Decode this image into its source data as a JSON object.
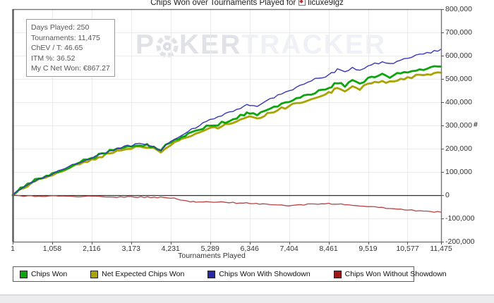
{
  "title": {
    "prefix": "Chips Won over Tournaments Played for",
    "player": "licuxe9lgz"
  },
  "watermark": {
    "part1": "P",
    "part2": "KER",
    "part3": "TRACKER"
  },
  "stats_box": {
    "lines": [
      "Days Played: 250",
      "Tournaments: 11,475",
      "ChEV / T: 46.65",
      "ITM %: 36.52",
      "My C Net Won: €867.27"
    ]
  },
  "chart_data": {
    "type": "line",
    "title": "Chips Won over Tournaments Played for licuxe9lgz",
    "xlabel": "Tournaments Played",
    "ylabel": "#",
    "grid": true,
    "legend_position": "bottom",
    "xlim": [
      1,
      11475
    ],
    "ylim": [
      -200000,
      800000
    ],
    "x_tick_labels": [
      "1",
      "1,058",
      "2,116",
      "3,173",
      "4,231",
      "5,289",
      "6,346",
      "7,404",
      "8,461",
      "9,519",
      "10,577",
      "11,475"
    ],
    "x_tick_values": [
      1,
      1058,
      2116,
      3173,
      4231,
      5289,
      6346,
      7404,
      8461,
      9519,
      10577,
      11475
    ],
    "y_tick_labels": [
      "800,000",
      "700,000",
      "600,000",
      "500,000",
      "400,000",
      "300,000",
      "200,000",
      "100,000",
      "0",
      "-100,000",
      "-200,000"
    ],
    "y_tick_values": [
      800000,
      700000,
      600000,
      500000,
      400000,
      300000,
      200000,
      100000,
      0,
      -100000,
      -200000
    ],
    "zero_line": 0,
    "series": [
      {
        "name": "Net Expected Chips Won",
        "color": "#a8a403",
        "width": 2.8,
        "jitter": 2.0,
        "points": [
          [
            1,
            0
          ],
          [
            120,
            15000
          ],
          [
            300,
            33000
          ],
          [
            500,
            52000
          ],
          [
            700,
            63000
          ],
          [
            900,
            75000
          ],
          [
            1058,
            85000
          ],
          [
            1300,
            100000
          ],
          [
            1600,
            120000
          ],
          [
            1900,
            140000
          ],
          [
            2116,
            151000
          ],
          [
            2400,
            168000
          ],
          [
            2700,
            186000
          ],
          [
            2900,
            195000
          ],
          [
            3173,
            201000
          ],
          [
            3400,
            207000
          ],
          [
            3600,
            205000
          ],
          [
            3780,
            198000
          ],
          [
            3970,
            183000
          ],
          [
            4100,
            206000
          ],
          [
            4231,
            219000
          ],
          [
            4450,
            234000
          ],
          [
            4700,
            248000
          ],
          [
            5000,
            272000
          ],
          [
            5289,
            287000
          ],
          [
            5500,
            293000
          ],
          [
            5800,
            310000
          ],
          [
            6000,
            319000
          ],
          [
            6200,
            334000
          ],
          [
            6346,
            340000
          ],
          [
            6550,
            330000
          ],
          [
            6750,
            346000
          ],
          [
            6900,
            357000
          ],
          [
            7100,
            367000
          ],
          [
            7404,
            383000
          ],
          [
            7600,
            394000
          ],
          [
            7800,
            406000
          ],
          [
            8000,
            418000
          ],
          [
            8200,
            428000
          ],
          [
            8461,
            440000
          ],
          [
            8700,
            460000
          ],
          [
            8900,
            450000
          ],
          [
            9100,
            470000
          ],
          [
            9300,
            458000
          ],
          [
            9519,
            476000
          ],
          [
            9700,
            487000
          ],
          [
            9900,
            492000
          ],
          [
            10100,
            484000
          ],
          [
            10300,
            495000
          ],
          [
            10577,
            505000
          ],
          [
            10800,
            512000
          ],
          [
            11000,
            517000
          ],
          [
            11200,
            521000
          ],
          [
            11475,
            527000
          ]
        ]
      },
      {
        "name": "Chips Won",
        "color": "#0da50d",
        "width": 2.8,
        "jitter": 2.0,
        "points": [
          [
            1,
            0
          ],
          [
            120,
            18000
          ],
          [
            300,
            38000
          ],
          [
            500,
            58000
          ],
          [
            700,
            70000
          ],
          [
            900,
            82000
          ],
          [
            1058,
            92000
          ],
          [
            1300,
            108000
          ],
          [
            1600,
            128000
          ],
          [
            1900,
            148000
          ],
          [
            2116,
            160000
          ],
          [
            2400,
            178000
          ],
          [
            2700,
            196000
          ],
          [
            2900,
            205000
          ],
          [
            3173,
            212000
          ],
          [
            3400,
            218000
          ],
          [
            3600,
            215000
          ],
          [
            3780,
            206000
          ],
          [
            3970,
            188000
          ],
          [
            4100,
            215000
          ],
          [
            4231,
            230000
          ],
          [
            4450,
            245000
          ],
          [
            4700,
            260000
          ],
          [
            5000,
            285000
          ],
          [
            5289,
            300000
          ],
          [
            5500,
            305000
          ],
          [
            5800,
            322000
          ],
          [
            6000,
            332000
          ],
          [
            6200,
            348000
          ],
          [
            6346,
            355000
          ],
          [
            6550,
            342000
          ],
          [
            6750,
            360000
          ],
          [
            6900,
            372000
          ],
          [
            7100,
            382000
          ],
          [
            7404,
            400000
          ],
          [
            7600,
            412000
          ],
          [
            7800,
            425000
          ],
          [
            8000,
            437000
          ],
          [
            8200,
            448000
          ],
          [
            8461,
            462000
          ],
          [
            8700,
            485000
          ],
          [
            8900,
            470000
          ],
          [
            9100,
            495000
          ],
          [
            9300,
            480000
          ],
          [
            9519,
            500000
          ],
          [
            9700,
            512000
          ],
          [
            9900,
            518000
          ],
          [
            10100,
            508000
          ],
          [
            10300,
            520000
          ],
          [
            10577,
            530000
          ],
          [
            10800,
            538000
          ],
          [
            11000,
            543000
          ],
          [
            11200,
            548000
          ],
          [
            11475,
            553000
          ]
        ]
      },
      {
        "name": "Chips Won With Showdown",
        "color": "#3838b8",
        "width": 1.4,
        "jitter": 1.6,
        "points": [
          [
            1,
            0
          ],
          [
            120,
            18000
          ],
          [
            300,
            38000
          ],
          [
            500,
            58000
          ],
          [
            700,
            70000
          ],
          [
            900,
            82000
          ],
          [
            1058,
            92000
          ],
          [
            1300,
            108000
          ],
          [
            1600,
            128000
          ],
          [
            1900,
            148000
          ],
          [
            2116,
            160000
          ],
          [
            2400,
            178000
          ],
          [
            2700,
            196000
          ],
          [
            2900,
            205000
          ],
          [
            3173,
            213000
          ],
          [
            3400,
            220000
          ],
          [
            3600,
            217000
          ],
          [
            3780,
            208000
          ],
          [
            3970,
            191000
          ],
          [
            4100,
            218000
          ],
          [
            4231,
            234000
          ],
          [
            4450,
            252000
          ],
          [
            4700,
            272000
          ],
          [
            5000,
            302000
          ],
          [
            5289,
            325000
          ],
          [
            5500,
            335000
          ],
          [
            5800,
            355000
          ],
          [
            6000,
            368000
          ],
          [
            6200,
            382000
          ],
          [
            6346,
            390000
          ],
          [
            6550,
            384000
          ],
          [
            6750,
            402000
          ],
          [
            6900,
            415000
          ],
          [
            7100,
            428000
          ],
          [
            7404,
            450000
          ],
          [
            7600,
            462000
          ],
          [
            7800,
            478000
          ],
          [
            8000,
            492000
          ],
          [
            8200,
            505000
          ],
          [
            8461,
            515000
          ],
          [
            8700,
            540000
          ],
          [
            8900,
            528000
          ],
          [
            9100,
            548000
          ],
          [
            9300,
            538000
          ],
          [
            9519,
            552000
          ],
          [
            9700,
            565000
          ],
          [
            9900,
            572000
          ],
          [
            10100,
            562000
          ],
          [
            10300,
            578000
          ],
          [
            10577,
            592000
          ],
          [
            10800,
            600000
          ],
          [
            11000,
            607000
          ],
          [
            11200,
            615000
          ],
          [
            11475,
            628000
          ]
        ]
      },
      {
        "name": "Chips Won Without Showdown",
        "color": "#b84444",
        "width": 1.3,
        "jitter": 0.8,
        "points": [
          [
            1,
            0
          ],
          [
            300,
            -3000
          ],
          [
            700,
            -5000
          ],
          [
            1058,
            -4000
          ],
          [
            1500,
            -6000
          ],
          [
            2116,
            -5000
          ],
          [
            2600,
            -8000
          ],
          [
            3173,
            -7000
          ],
          [
            3700,
            -9000
          ],
          [
            4231,
            -11000
          ],
          [
            4500,
            -20000
          ],
          [
            4760,
            -28000
          ],
          [
            5000,
            -30000
          ],
          [
            5289,
            -30000
          ],
          [
            5600,
            -28000
          ],
          [
            6000,
            -33000
          ],
          [
            6346,
            -35000
          ],
          [
            6700,
            -38000
          ],
          [
            7100,
            -42000
          ],
          [
            7404,
            -44000
          ],
          [
            7700,
            -41000
          ],
          [
            8000,
            -39000
          ],
          [
            8461,
            -36000
          ],
          [
            8800,
            -40000
          ],
          [
            9100,
            -42000
          ],
          [
            9300,
            -45000
          ],
          [
            9519,
            -47000
          ],
          [
            9800,
            -52000
          ],
          [
            10100,
            -57000
          ],
          [
            10400,
            -60000
          ],
          [
            10577,
            -62000
          ],
          [
            10800,
            -66000
          ],
          [
            11100,
            -70000
          ],
          [
            11475,
            -73000
          ]
        ]
      }
    ]
  },
  "legend": {
    "items": [
      {
        "label": "Chips Won",
        "color": "#0da50d"
      },
      {
        "label": "Net Expected Chips Won",
        "color": "#a8a403"
      },
      {
        "label": "Chips Won With Showdown",
        "color": "#2828a8"
      },
      {
        "label": "Chips Won Without Showdown",
        "color": "#a01818"
      }
    ]
  }
}
